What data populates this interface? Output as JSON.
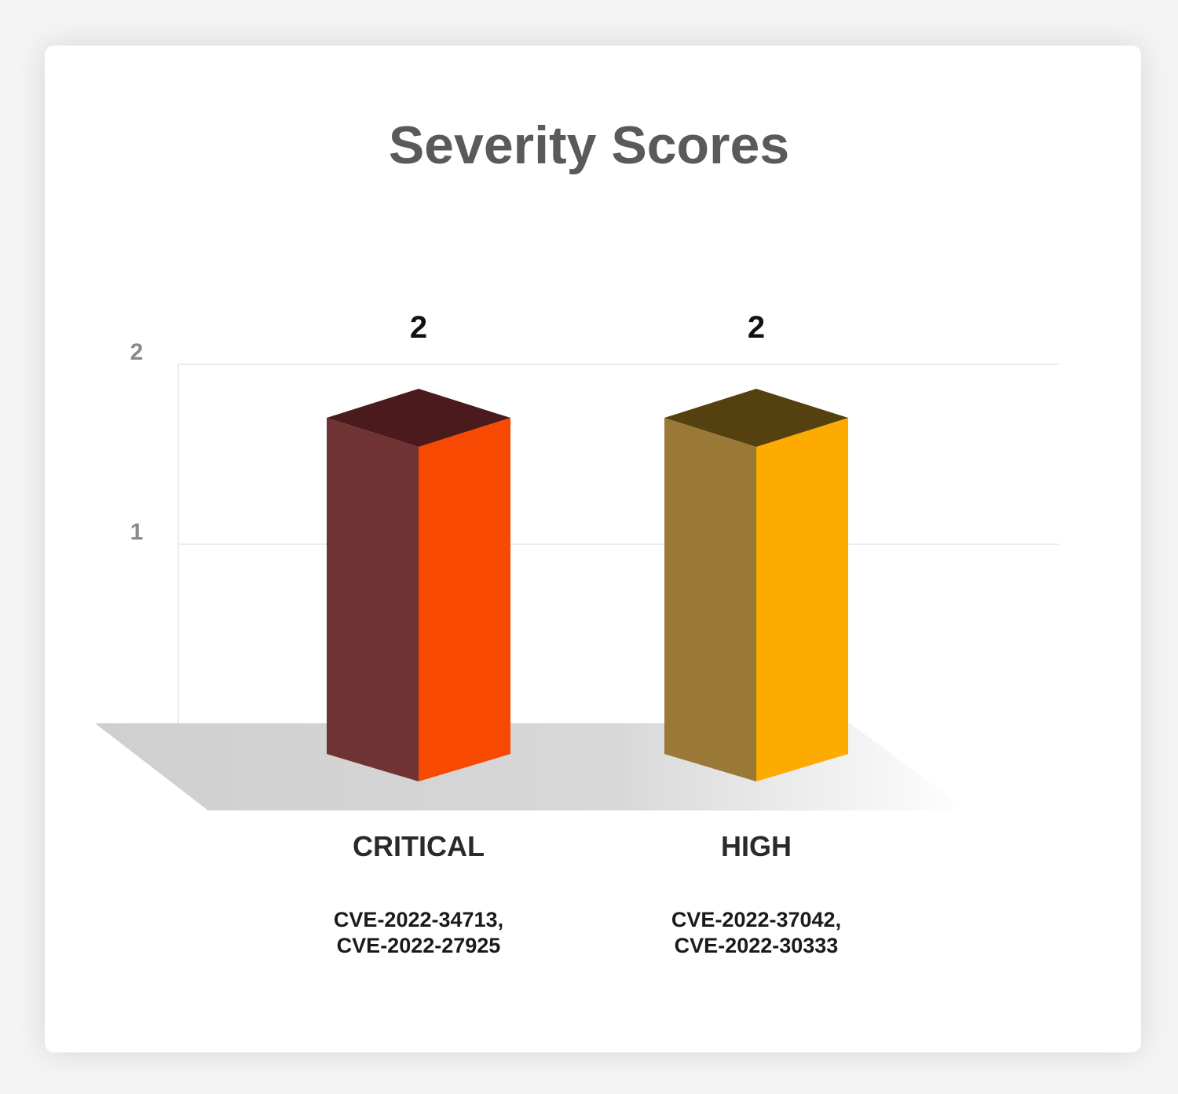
{
  "chart_data": {
    "type": "bar",
    "title": "Severity Scores",
    "categories": [
      "CRITICAL",
      "HIGH"
    ],
    "values": [
      2,
      2
    ],
    "cves": [
      [
        "CVE-2022-34713,",
        "CVE-2022-27925"
      ],
      [
        "CVE-2022-37042,",
        "CVE-2022-30333"
      ]
    ],
    "yticks": [
      "1",
      "2"
    ],
    "ylim": [
      0,
      2
    ],
    "grid": true,
    "legend": "none",
    "bar_colors": [
      {
        "front": "#f74902",
        "side": "#6f3333",
        "top": "#4a1a1c"
      },
      {
        "front": "#fdaa01",
        "side": "#9a7835",
        "top": "#55400f"
      }
    ]
  }
}
